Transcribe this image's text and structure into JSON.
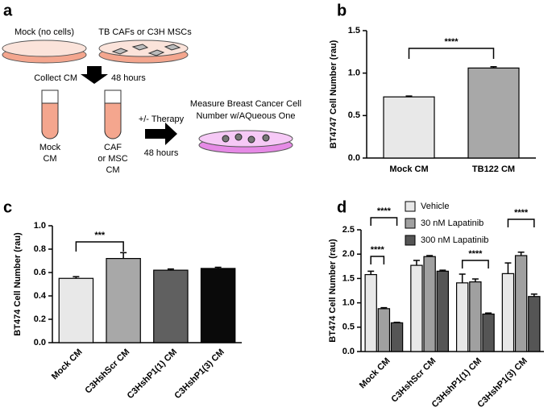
{
  "diagram": {
    "panel": "a",
    "dishes": [
      "Mock (no cells)",
      "TB CAFs or C3H MSCs"
    ],
    "collect": "Collect CM",
    "collect_time": "48 hours",
    "tubes": [
      {
        "lines": [
          "Mock",
          "CM"
        ]
      },
      {
        "lines": [
          "CAF",
          "or MSC",
          "CM"
        ]
      }
    ],
    "therapy": "+/- Therapy",
    "therapy_time": "48 hours",
    "measure": [
      "Measure Breast Cancer Cell",
      "Number w/AQueous One"
    ]
  },
  "chart_data": [
    {
      "type": "bar",
      "panel": "b",
      "y_label": "BT4747 Cell Number (rau)",
      "categories": [
        "Mock CM",
        "TB122 CM"
      ],
      "values": [
        0.72,
        1.06
      ],
      "errors": [
        0.01,
        0.015
      ],
      "colors": [
        "#e8e8e8",
        "#a8a8a8"
      ],
      "ylim": [
        0,
        1.5
      ],
      "yticks": [
        {
          "value": 0,
          "label": "0.0"
        },
        0.5,
        {
          "value": 1,
          "label": "1.0"
        },
        1.5
      ],
      "annotations": [
        "****"
      ]
    },
    {
      "type": "bar",
      "panel": "c",
      "y_label": "BT474 Cell Number (rau)",
      "categories": [
        "Mock CM",
        "C3HshScr CM",
        "C3HshP1(1) CM",
        "C3HshP1(3) CM"
      ],
      "values": [
        0.55,
        0.72,
        0.62,
        0.635
      ],
      "errors": [
        0.015,
        0.05,
        0.01,
        0.01
      ],
      "colors": [
        "#e8e8e8",
        "#a8a8a8",
        "#606060",
        "#0a0a0a"
      ],
      "ylim": [
        0,
        1
      ],
      "yticks": [
        {
          "value": 0,
          "label": "0.0"
        },
        0.2,
        0.4,
        0.6,
        0.8,
        {
          "value": 1,
          "label": "1.0"
        }
      ],
      "annotations": [
        "***"
      ]
    },
    {
      "type": "grouped_bar",
      "panel": "d",
      "y_label": "BT474 Cell Number (rau)",
      "categories": [
        "Mock CM",
        "C3HshScr CM",
        "C3HshP1(1) CM",
        "C3HshP1(3) CM"
      ],
      "series": [
        {
          "name": "Vehicle",
          "color": "#e8e8e8",
          "values": [
            1.58,
            1.77,
            1.41,
            1.6
          ],
          "errors": [
            0.07,
            0.1,
            0.18,
            0.22
          ]
        },
        {
          "name": "30 nM Lapatinib",
          "color": "#a0a0a0",
          "values": [
            0.88,
            1.95,
            1.43,
            1.97
          ],
          "errors": [
            0.02,
            0.02,
            0.06,
            0.07
          ]
        },
        {
          "name": "300 nM Lapatinib",
          "color": "#555555",
          "values": [
            0.59,
            1.65,
            0.77,
            1.13
          ],
          "errors": [
            0.01,
            0.02,
            0.02,
            0.05
          ]
        }
      ],
      "ylim": [
        0,
        2.5
      ],
      "yticks": [
        {
          "value": 0,
          "label": "0.0"
        },
        0.5,
        {
          "value": 1,
          "label": "1.0"
        },
        1.5,
        {
          "value": 2,
          "label": "2.0"
        },
        2.5
      ],
      "annotations": [
        "****",
        "****",
        "****",
        "****"
      ]
    }
  ]
}
